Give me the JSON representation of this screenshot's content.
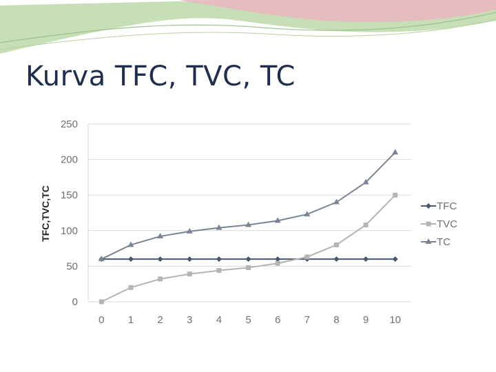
{
  "slide": {
    "title": "Kurva TFC, TVC, TC"
  },
  "colors": {
    "banner_pink": "#e8b9c0",
    "banner_green": "#b9d7a4",
    "banner_line": "#9fbf8c",
    "title": "#1f2d4e",
    "grid": "#d9d9d9",
    "tfc": "#4a5669",
    "tvc": "#b4b4b4",
    "tc": "#7b8494"
  },
  "chart_data": {
    "type": "line",
    "title": "",
    "xlabel": "",
    "ylabel": "TFC,TVC,TC",
    "x": [
      0,
      1,
      2,
      3,
      4,
      5,
      6,
      7,
      8,
      9,
      10
    ],
    "ylim": [
      0,
      250
    ],
    "yticks": [
      0,
      50,
      100,
      150,
      200,
      250
    ],
    "grid": true,
    "legend": "right",
    "series": [
      {
        "name": "TFC",
        "marker": "diamond",
        "color": "#4a5669",
        "values": [
          60,
          60,
          60,
          60,
          60,
          60,
          60,
          60,
          60,
          60,
          60
        ]
      },
      {
        "name": "TVC",
        "marker": "square",
        "color": "#b4b4b4",
        "values": [
          0,
          20,
          32,
          39,
          44,
          48,
          54,
          63,
          80,
          108,
          150
        ]
      },
      {
        "name": "TC",
        "marker": "triangle",
        "color": "#7b8494",
        "values": [
          60,
          80,
          92,
          99,
          104,
          108,
          114,
          123,
          140,
          168,
          210
        ]
      }
    ]
  }
}
